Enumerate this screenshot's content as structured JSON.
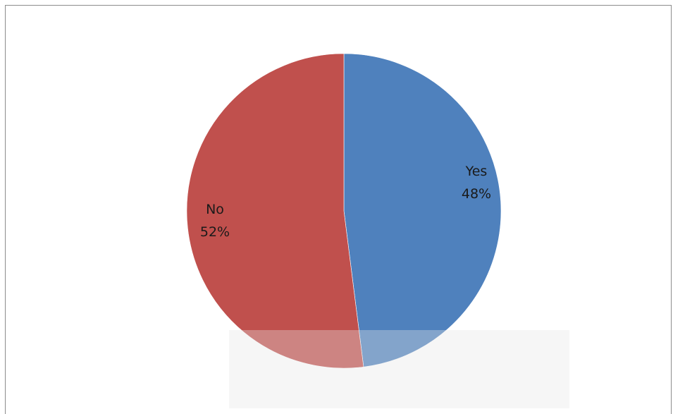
{
  "chart_data": {
    "type": "pie",
    "title": "",
    "slices": [
      {
        "label": "Yes",
        "value": 48,
        "percent_label": "48%",
        "color": "#4f81bd"
      },
      {
        "label": "No",
        "value": 52,
        "percent_label": "52%",
        "color": "#c0504d"
      }
    ]
  }
}
